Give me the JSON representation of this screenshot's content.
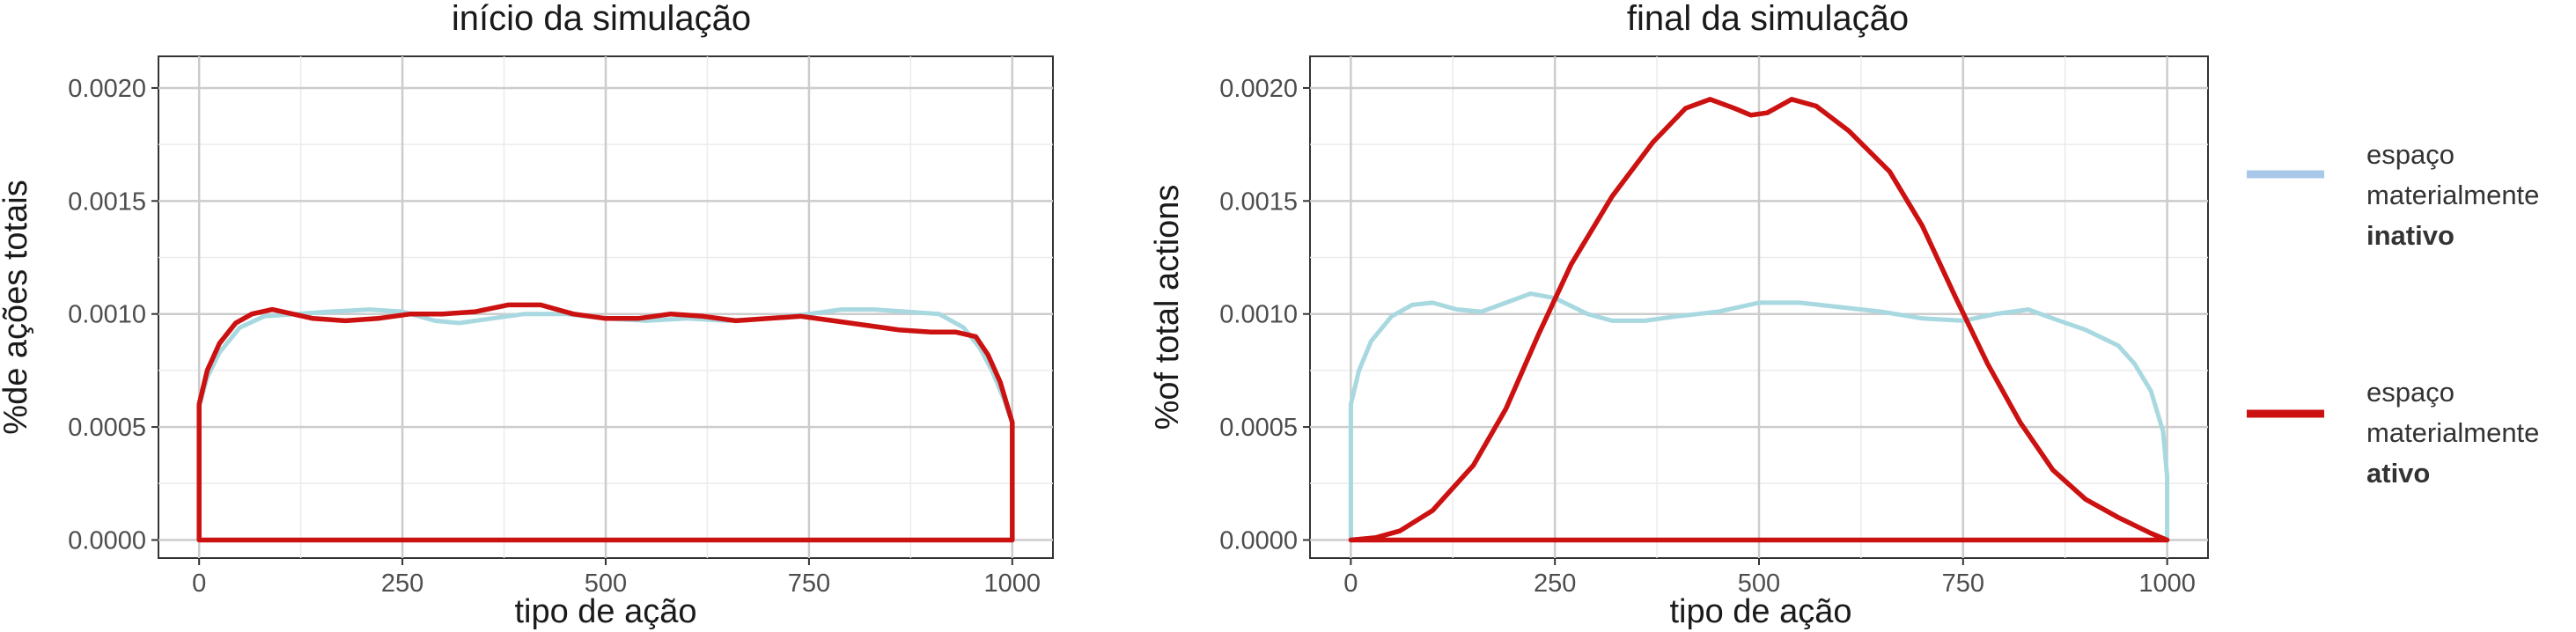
{
  "chart_data": [
    {
      "type": "line",
      "title": "início da simulação",
      "xlabel": "tipo de ação",
      "ylabel": "%de ações totais",
      "xlim": [
        -50,
        1050
      ],
      "ylim": [
        -8e-05,
        0.00214
      ],
      "x_ticks": [
        0,
        250,
        500,
        750,
        1000
      ],
      "x_tick_labels": [
        "0",
        "250",
        "500",
        "750",
        "1000"
      ],
      "y_ticks": [
        0,
        0.0005,
        0.001,
        0.0015,
        0.002
      ],
      "y_tick_labels": [
        "0.0000",
        "0.0005",
        "0.0010",
        "0.0015",
        "0.0020"
      ],
      "grid": true,
      "series": [
        {
          "name": "espaço materialmente inativo",
          "color": "#a8d8e0",
          "points": [
            [
              0,
              0
            ],
            [
              0,
              0.00059
            ],
            [
              10,
              0.00072
            ],
            [
              25,
              0.00083
            ],
            [
              50,
              0.00094
            ],
            [
              80,
              0.00099
            ],
            [
              120,
              0.001
            ],
            [
              160,
              0.00101
            ],
            [
              210,
              0.00102
            ],
            [
              250,
              0.00101
            ],
            [
              290,
              0.00097
            ],
            [
              320,
              0.00096
            ],
            [
              360,
              0.00098
            ],
            [
              400,
              0.001
            ],
            [
              450,
              0.001
            ],
            [
              500,
              0.00098
            ],
            [
              550,
              0.00097
            ],
            [
              600,
              0.00098
            ],
            [
              650,
              0.00097
            ],
            [
              700,
              0.00098
            ],
            [
              750,
              0.001
            ],
            [
              790,
              0.00102
            ],
            [
              830,
              0.00102
            ],
            [
              870,
              0.00101
            ],
            [
              910,
              0.001
            ],
            [
              940,
              0.00094
            ],
            [
              960,
              0.00085
            ],
            [
              975,
              0.00075
            ],
            [
              990,
              0.00062
            ],
            [
              1000,
              0.00052
            ],
            [
              1000,
              0
            ]
          ]
        },
        {
          "name": "espaço materialmente ativo",
          "color": "#cc1111",
          "points": [
            [
              0,
              0
            ],
            [
              0,
              0.0006
            ],
            [
              10,
              0.00075
            ],
            [
              25,
              0.00087
            ],
            [
              45,
              0.00096
            ],
            [
              65,
              0.001
            ],
            [
              90,
              0.00102
            ],
            [
              115,
              0.001
            ],
            [
              140,
              0.00098
            ],
            [
              180,
              0.00097
            ],
            [
              220,
              0.00098
            ],
            [
              260,
              0.001
            ],
            [
              300,
              0.001
            ],
            [
              340,
              0.00101
            ],
            [
              380,
              0.00104
            ],
            [
              420,
              0.00104
            ],
            [
              460,
              0.001
            ],
            [
              500,
              0.00098
            ],
            [
              540,
              0.00098
            ],
            [
              580,
              0.001
            ],
            [
              620,
              0.00099
            ],
            [
              660,
              0.00097
            ],
            [
              700,
              0.00098
            ],
            [
              740,
              0.00099
            ],
            [
              780,
              0.00097
            ],
            [
              820,
              0.00095
            ],
            [
              860,
              0.00093
            ],
            [
              900,
              0.00092
            ],
            [
              930,
              0.00092
            ],
            [
              955,
              0.0009
            ],
            [
              970,
              0.00082
            ],
            [
              985,
              0.0007
            ],
            [
              1000,
              0.00052
            ],
            [
              1000,
              0
            ],
            [
              0,
              0
            ]
          ]
        }
      ]
    },
    {
      "type": "line",
      "title": "final da simulação",
      "xlabel": "tipo de ação",
      "ylabel": "%of total actions",
      "xlim": [
        -50,
        1050
      ],
      "ylim": [
        -8e-05,
        0.00214
      ],
      "x_ticks": [
        0,
        250,
        500,
        750,
        1000
      ],
      "x_tick_labels": [
        "0",
        "250",
        "500",
        "750",
        "1000"
      ],
      "y_ticks": [
        0,
        0.0005,
        0.001,
        0.0015,
        0.002
      ],
      "y_tick_labels": [
        "0.0000",
        "0.0005",
        "0.0010",
        "0.0015",
        "0.0020"
      ],
      "grid": true,
      "series": [
        {
          "name": "espaço materialmente inativo",
          "color": "#a8d8e0",
          "points": [
            [
              0,
              0
            ],
            [
              0,
              0.0006
            ],
            [
              10,
              0.00075
            ],
            [
              25,
              0.00088
            ],
            [
              50,
              0.00099
            ],
            [
              75,
              0.00104
            ],
            [
              100,
              0.00105
            ],
            [
              130,
              0.00102
            ],
            [
              160,
              0.00101
            ],
            [
              190,
              0.00105
            ],
            [
              220,
              0.00109
            ],
            [
              250,
              0.00107
            ],
            [
              290,
              0.001
            ],
            [
              320,
              0.00097
            ],
            [
              360,
              0.00097
            ],
            [
              400,
              0.00099
            ],
            [
              450,
              0.00101
            ],
            [
              500,
              0.00105
            ],
            [
              550,
              0.00105
            ],
            [
              600,
              0.00103
            ],
            [
              650,
              0.00101
            ],
            [
              700,
              0.00098
            ],
            [
              750,
              0.00097
            ],
            [
              790,
              0.001
            ],
            [
              830,
              0.00102
            ],
            [
              860,
              0.00098
            ],
            [
              900,
              0.00093
            ],
            [
              940,
              0.00086
            ],
            [
              960,
              0.00078
            ],
            [
              980,
              0.00066
            ],
            [
              995,
              0.00048
            ],
            [
              1000,
              0.00028
            ],
            [
              1000,
              0
            ]
          ]
        },
        {
          "name": "espaço materialmente ativo",
          "color": "#cc1111",
          "points": [
            [
              0,
              0
            ],
            [
              30,
              1e-05
            ],
            [
              60,
              4e-05
            ],
            [
              100,
              0.00013
            ],
            [
              150,
              0.00033
            ],
            [
              190,
              0.00058
            ],
            [
              230,
              0.00091
            ],
            [
              270,
              0.00122
            ],
            [
              320,
              0.00152
            ],
            [
              370,
              0.00176
            ],
            [
              410,
              0.00191
            ],
            [
              440,
              0.00195
            ],
            [
              470,
              0.00191
            ],
            [
              490,
              0.00188
            ],
            [
              510,
              0.00189
            ],
            [
              540,
              0.00195
            ],
            [
              570,
              0.00192
            ],
            [
              610,
              0.00181
            ],
            [
              660,
              0.00163
            ],
            [
              700,
              0.00139
            ],
            [
              740,
              0.00108
            ],
            [
              780,
              0.00078
            ],
            [
              820,
              0.00052
            ],
            [
              860,
              0.00031
            ],
            [
              900,
              0.00018
            ],
            [
              940,
              0.0001
            ],
            [
              980,
              3e-05
            ],
            [
              1000,
              0
            ],
            [
              0,
              0
            ]
          ]
        }
      ]
    }
  ],
  "legend": {
    "items": [
      {
        "line1": "espaço",
        "line2": "materialmente",
        "line3": "inativo",
        "color": "#a8c8e8"
      },
      {
        "line1": "espaço",
        "line2": "materialmente",
        "line3": "ativo",
        "color": "#cc1111"
      }
    ]
  }
}
